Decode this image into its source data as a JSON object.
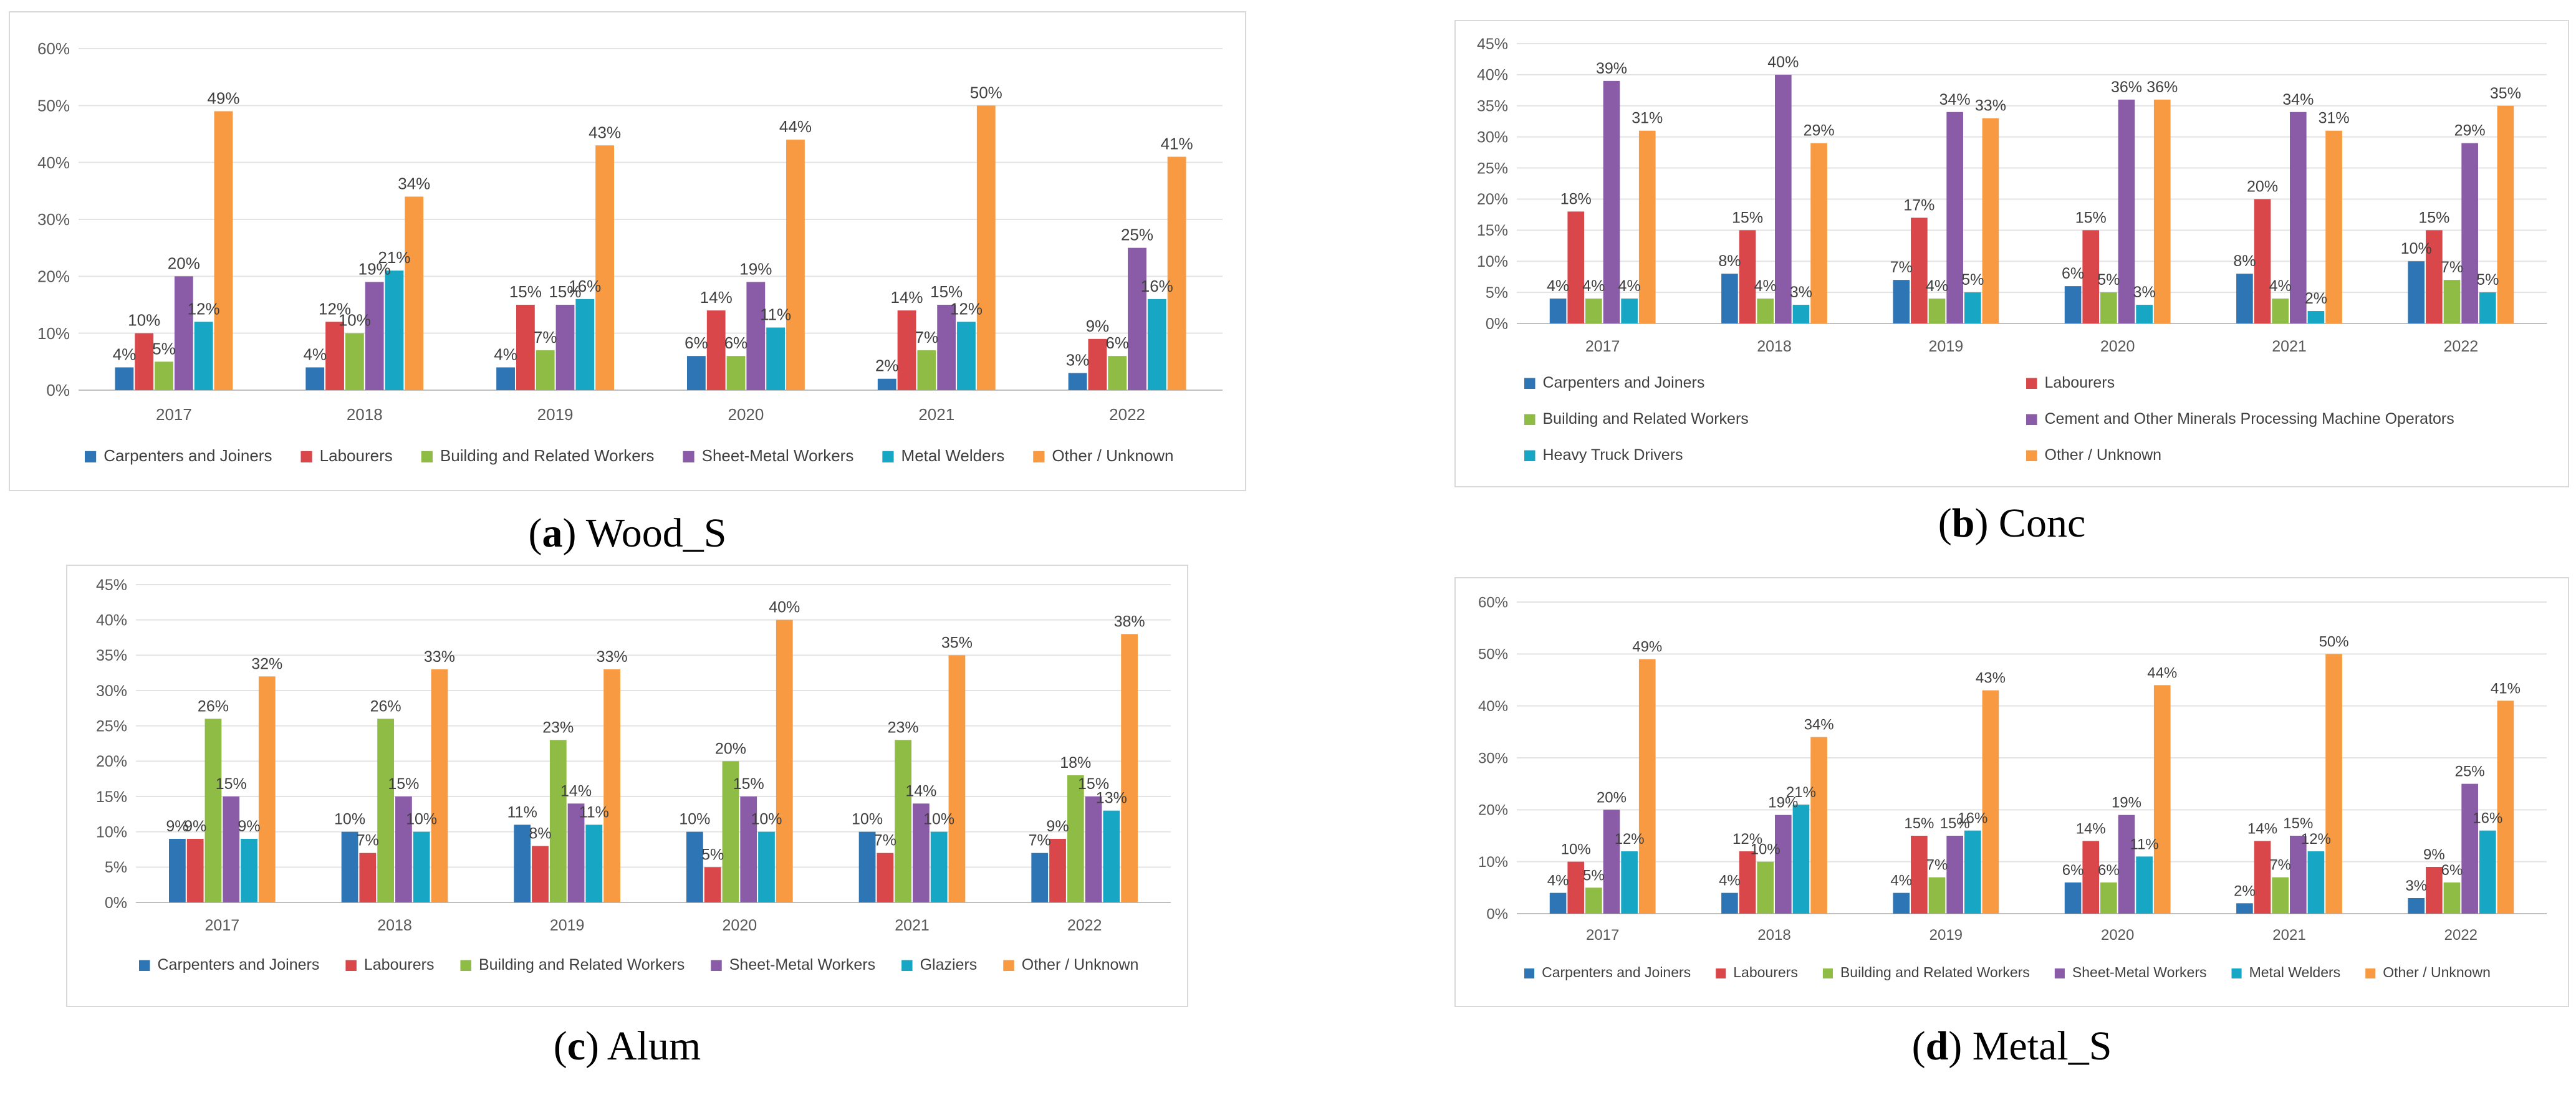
{
  "colors": {
    "Carpenters and Joiners": "#2e75b6",
    "Labourers": "#d9474a",
    "Building and Related Workers": "#8fbc44",
    "Sheet-Metal Workers": "#8a5ba7",
    "Cement and Other Minerals Processing Machine Operators": "#8a5ba7",
    "Metal Welders": "#17a7c4",
    "Heavy Truck Drivers": "#17a7c4",
    "Glaziers": "#17a7c4",
    "Other / Unknown": "#f79a42"
  },
  "chart_data": [
    {
      "type": "bar",
      "caption_letter": "a",
      "caption_text": " Wood_S",
      "categories": [
        "2017",
        "2018",
        "2019",
        "2020",
        "2021",
        "2022"
      ],
      "ylim": [
        0,
        60
      ],
      "yticks": [
        0,
        10,
        20,
        30,
        40,
        50,
        60
      ],
      "legend_position": "bottom",
      "grid": true,
      "series": [
        {
          "name": "Carpenters and Joiners",
          "values": [
            4,
            4,
            4,
            6,
            2,
            3
          ]
        },
        {
          "name": "Labourers",
          "values": [
            10,
            12,
            15,
            14,
            14,
            9
          ]
        },
        {
          "name": "Building and Related Workers",
          "values": [
            5,
            10,
            7,
            6,
            7,
            6
          ]
        },
        {
          "name": "Sheet-Metal Workers",
          "values": [
            20,
            19,
            15,
            19,
            15,
            25
          ]
        },
        {
          "name": "Metal Welders",
          "values": [
            12,
            21,
            16,
            11,
            12,
            16
          ]
        },
        {
          "name": "Other / Unknown",
          "values": [
            49,
            34,
            43,
            44,
            50,
            41
          ]
        }
      ]
    },
    {
      "type": "bar",
      "caption_letter": "b",
      "caption_text": " Conc",
      "categories": [
        "2017",
        "2018",
        "2019",
        "2020",
        "2021",
        "2022"
      ],
      "ylim": [
        0,
        45
      ],
      "yticks": [
        0,
        5,
        10,
        15,
        20,
        25,
        30,
        35,
        40,
        45
      ],
      "legend_position": "bottom",
      "grid": true,
      "series": [
        {
          "name": "Carpenters and Joiners",
          "values": [
            4,
            8,
            7,
            6,
            8,
            10
          ]
        },
        {
          "name": "Labourers",
          "values": [
            18,
            15,
            17,
            15,
            20,
            15
          ]
        },
        {
          "name": "Building and Related Workers",
          "values": [
            4,
            4,
            4,
            5,
            4,
            7
          ]
        },
        {
          "name": "Cement and Other Minerals Processing Machine Operators",
          "values": [
            39,
            40,
            34,
            36,
            34,
            29
          ]
        },
        {
          "name": "Heavy Truck Drivers",
          "values": [
            4,
            3,
            5,
            3,
            2,
            5
          ]
        },
        {
          "name": "Other / Unknown",
          "values": [
            31,
            29,
            33,
            36,
            31,
            35
          ]
        }
      ]
    },
    {
      "type": "bar",
      "caption_letter": "c",
      "caption_text": " Alum",
      "categories": [
        "2017",
        "2018",
        "2019",
        "2020",
        "2021",
        "2022"
      ],
      "ylim": [
        0,
        45
      ],
      "yticks": [
        0,
        5,
        10,
        15,
        20,
        25,
        30,
        35,
        40,
        45
      ],
      "legend_position": "bottom",
      "grid": true,
      "series": [
        {
          "name": "Carpenters and Joiners",
          "values": [
            9,
            10,
            11,
            10,
            10,
            7
          ]
        },
        {
          "name": "Labourers",
          "values": [
            9,
            7,
            8,
            5,
            7,
            9
          ]
        },
        {
          "name": "Building and Related Workers",
          "values": [
            26,
            26,
            23,
            20,
            23,
            18
          ]
        },
        {
          "name": "Sheet-Metal Workers",
          "values": [
            15,
            15,
            14,
            15,
            14,
            15
          ]
        },
        {
          "name": "Glaziers",
          "values": [
            9,
            10,
            11,
            10,
            10,
            13
          ]
        },
        {
          "name": "Other / Unknown",
          "values": [
            32,
            33,
            33,
            40,
            35,
            38
          ]
        }
      ]
    },
    {
      "type": "bar",
      "caption_letter": "d",
      "caption_text": " Metal_S",
      "categories": [
        "2017",
        "2018",
        "2019",
        "2020",
        "2021",
        "2022"
      ],
      "ylim": [
        0,
        60
      ],
      "yticks": [
        0,
        10,
        20,
        30,
        40,
        50,
        60
      ],
      "legend_position": "bottom",
      "grid": true,
      "series": [
        {
          "name": "Carpenters and Joiners",
          "values": [
            4,
            4,
            4,
            6,
            2,
            3
          ]
        },
        {
          "name": "Labourers",
          "values": [
            10,
            12,
            15,
            14,
            14,
            9
          ]
        },
        {
          "name": "Building and Related Workers",
          "values": [
            5,
            10,
            7,
            6,
            7,
            6
          ]
        },
        {
          "name": "Sheet-Metal Workers",
          "values": [
            20,
            19,
            15,
            19,
            15,
            25
          ]
        },
        {
          "name": "Metal Welders",
          "values": [
            12,
            21,
            16,
            11,
            12,
            16
          ]
        },
        {
          "name": "Other / Unknown",
          "values": [
            49,
            34,
            43,
            44,
            50,
            41
          ]
        }
      ]
    }
  ]
}
